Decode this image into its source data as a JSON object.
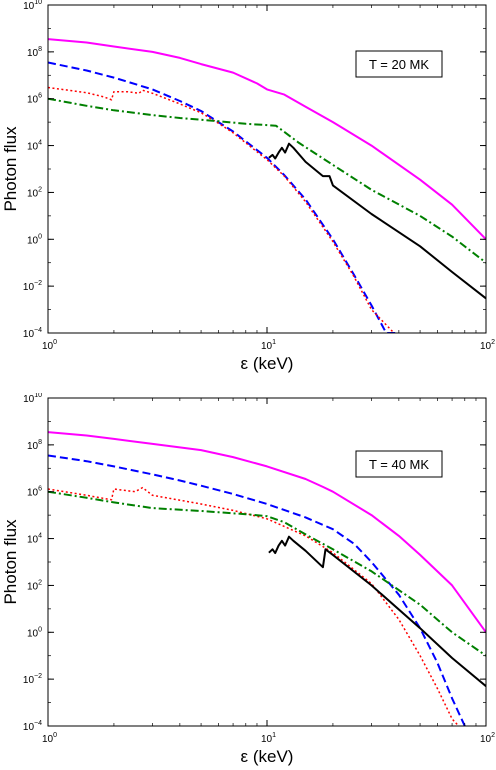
{
  "chart_data": [
    {
      "type": "line",
      "xlabel": "ε (keV)",
      "ylabel": "Photon flux",
      "xscale": "log",
      "yscale": "log",
      "xlim": [
        1,
        100
      ],
      "ylim": [
        0.0001,
        10000000000
      ],
      "xticks": [
        {
          "base": "10",
          "exp": "0",
          "value": 1
        },
        {
          "base": "10",
          "exp": "1",
          "value": 10
        },
        {
          "base": "10",
          "exp": "2",
          "value": 100
        }
      ],
      "yticks": [
        {
          "base": "10",
          "exp": "−4",
          "value": 0.0001
        },
        {
          "base": "10",
          "exp": "−2",
          "value": 0.01
        },
        {
          "base": "10",
          "exp": "0",
          "value": 1
        },
        {
          "base": "10",
          "exp": "2",
          "value": 100
        },
        {
          "base": "10",
          "exp": "4",
          "value": 10000
        },
        {
          "base": "10",
          "exp": "6",
          "value": 1000000
        },
        {
          "base": "10",
          "exp": "8",
          "value": 100000000
        },
        {
          "base": "10",
          "exp": "10",
          "value": 10000000000
        }
      ],
      "annotation": "T = 20 MK",
      "legend_position": "top-right",
      "grid": false,
      "series": [
        {
          "color": "#ff00ff",
          "dash": "solid",
          "points": [
            [
              1,
              350000000.0
            ],
            [
              1.5,
              250000000.0
            ],
            [
              2,
              170000000.0
            ],
            [
              3,
              100000000.0
            ],
            [
              4,
              55000000.0
            ],
            [
              5,
              30000000.0
            ],
            [
              7,
              13000000.0
            ],
            [
              9,
              4500000.0
            ],
            [
              10,
              2500000.0
            ],
            [
              12,
              1500000.0
            ],
            [
              15,
              450000.0
            ],
            [
              20,
              100000.0
            ],
            [
              30,
              10000.0
            ],
            [
              50,
              350.0
            ],
            [
              70,
              30.0
            ],
            [
              100,
              1.0
            ]
          ]
        },
        {
          "color": "#0000ff",
          "dash": "dashed",
          "points": [
            [
              1,
              35000000.0
            ],
            [
              1.5,
              16000000.0
            ],
            [
              2,
              8000000.0
            ],
            [
              3,
              2500000.0
            ],
            [
              4,
              800000.0
            ],
            [
              5,
              300000.0
            ],
            [
              6,
              100000.0
            ],
            [
              7,
              40000.0
            ],
            [
              8,
              15000.0
            ],
            [
              10,
              3000.0
            ],
            [
              12,
              550.0
            ],
            [
              15,
              50.0
            ],
            [
              20,
              1.0
            ],
            [
              25,
              0.03
            ],
            [
              30,
              0.0015
            ],
            [
              35,
              0.0001
            ],
            [
              40,
              0.0001
            ]
          ]
        },
        {
          "color": "#ff0000",
          "dash": "dotted",
          "points": [
            [
              1,
              3000000.0
            ],
            [
              1.5,
              1800000.0
            ],
            [
              1.8,
              1200000.0
            ],
            [
              1.95,
              900000.0
            ],
            [
              2,
              2000000.0
            ],
            [
              2.3,
              2000000.0
            ],
            [
              2.6,
              1700000.0
            ],
            [
              2.7,
              2300000.0
            ],
            [
              3,
              1700000.0
            ],
            [
              4,
              600000.0
            ],
            [
              5,
              250000.0
            ],
            [
              6,
              90000.0
            ],
            [
              7,
              35000.0
            ],
            [
              8,
              13000.0
            ],
            [
              10,
              2500.0
            ],
            [
              12,
              500.0
            ],
            [
              15,
              40.0
            ],
            [
              20,
              0.8
            ],
            [
              25,
              0.025
            ],
            [
              30,
              0.001
            ],
            [
              38,
              0.0001
            ]
          ]
        },
        {
          "color": "#008000",
          "dash": "dash-dot",
          "points": [
            [
              1,
              1000000.0
            ],
            [
              1.5,
              500000.0
            ],
            [
              2,
              320000.0
            ],
            [
              3,
              200000.0
            ],
            [
              4,
              150000.0
            ],
            [
              6,
              110000.0
            ],
            [
              8,
              85000.0
            ],
            [
              10,
              75000.0
            ],
            [
              11,
              70000.0
            ],
            [
              14,
              13000.0
            ],
            [
              20,
              1500.0
            ],
            [
              30,
              130.0
            ],
            [
              50,
              10.0
            ],
            [
              70,
              1.3
            ],
            [
              100,
              0.1
            ]
          ]
        },
        {
          "color": "#000000",
          "dash": "solid",
          "points": [
            [
              10.2,
              3000.0
            ],
            [
              10.6,
              4000.0
            ],
            [
              10.9,
              2800.0
            ],
            [
              11.3,
              5000.0
            ],
            [
              11.7,
              8000.0
            ],
            [
              12.1,
              5000.0
            ],
            [
              12.6,
              12000.0
            ],
            [
              13.2,
              8000.0
            ],
            [
              15,
              2000.0
            ],
            [
              18,
              500.0
            ],
            [
              19.3,
              500.0
            ],
            [
              20,
              200.0
            ],
            [
              30,
              12.0
            ],
            [
              50,
              0.5
            ],
            [
              70,
              0.04
            ],
            [
              100,
              0.003
            ]
          ]
        }
      ]
    },
    {
      "type": "line",
      "xlabel": "ε (keV)",
      "ylabel": "Photon flux",
      "xscale": "log",
      "yscale": "log",
      "xlim": [
        1,
        100
      ],
      "ylim": [
        0.0001,
        10000000000
      ],
      "xticks": [
        {
          "base": "10",
          "exp": "0",
          "value": 1
        },
        {
          "base": "10",
          "exp": "1",
          "value": 10
        },
        {
          "base": "10",
          "exp": "2",
          "value": 100
        }
      ],
      "yticks": [
        {
          "base": "10",
          "exp": "−4",
          "value": 0.0001
        },
        {
          "base": "10",
          "exp": "−2",
          "value": 0.01
        },
        {
          "base": "10",
          "exp": "0",
          "value": 1
        },
        {
          "base": "10",
          "exp": "2",
          "value": 100
        },
        {
          "base": "10",
          "exp": "4",
          "value": 10000
        },
        {
          "base": "10",
          "exp": "6",
          "value": 1000000
        },
        {
          "base": "10",
          "exp": "8",
          "value": 100000000
        },
        {
          "base": "10",
          "exp": "10",
          "value": 10000000000
        }
      ],
      "annotation": "T = 40 MK",
      "legend_position": "top-right",
      "grid": false,
      "series": [
        {
          "color": "#ff00ff",
          "dash": "solid",
          "points": [
            [
              1,
              350000000.0
            ],
            [
              1.5,
              250000000.0
            ],
            [
              2,
              180000000.0
            ],
            [
              3,
              110000000.0
            ],
            [
              5,
              60000000.0
            ],
            [
              7,
              30000000.0
            ],
            [
              10,
              12000000.0
            ],
            [
              15,
              3500000.0
            ],
            [
              18,
              1600000.0
            ],
            [
              20,
              1000000.0
            ],
            [
              30,
              100000.0
            ],
            [
              40,
              13000.0
            ],
            [
              50,
              2000.0
            ],
            [
              70,
              100.0
            ],
            [
              100,
              1.0
            ]
          ]
        },
        {
          "color": "#0000ff",
          "dash": "dashed",
          "points": [
            [
              1,
              35000000.0
            ],
            [
              1.5,
              20000000.0
            ],
            [
              2,
              12000000.0
            ],
            [
              3,
              5500000.0
            ],
            [
              4,
              3000000.0
            ],
            [
              5,
              1800000.0
            ],
            [
              7,
              800000.0
            ],
            [
              10,
              300000.0
            ],
            [
              15,
              80000.0
            ],
            [
              20,
              25000.0
            ],
            [
              25,
              6000.0
            ],
            [
              30,
              1000.0
            ],
            [
              40,
              40.0
            ],
            [
              50,
              1.5
            ],
            [
              60,
              0.05
            ],
            [
              70,
              0.0015
            ],
            [
              80,
              0.0001
            ]
          ]
        },
        {
          "color": "#ff0000",
          "dash": "dotted",
          "points": [
            [
              1,
              1300000.0
            ],
            [
              1.5,
              700000.0
            ],
            [
              1.95,
              450000.0
            ],
            [
              2,
              1300000.0
            ],
            [
              2.5,
              1000000.0
            ],
            [
              2.7,
              1500000.0
            ],
            [
              3,
              700000.0
            ],
            [
              5,
              300000.0
            ],
            [
              7,
              160000.0
            ],
            [
              10,
              70000.0
            ],
            [
              15,
              13000.0
            ],
            [
              20,
              2500.0
            ],
            [
              30,
              120.0
            ],
            [
              40,
              3.5
            ],
            [
              50,
              0.1
            ],
            [
              60,
              0.004
            ],
            [
              70,
              0.0002
            ],
            [
              75,
              0.0001
            ]
          ]
        },
        {
          "color": "#008000",
          "dash": "dash-dot",
          "points": [
            [
              1,
              1000000.0
            ],
            [
              1.5,
              550000.0
            ],
            [
              2,
              350000.0
            ],
            [
              3,
              200000.0
            ],
            [
              5,
              150000.0
            ],
            [
              8,
              110000.0
            ],
            [
              10,
              90000.0
            ],
            [
              12,
              50000.0
            ],
            [
              15,
              15000.0
            ],
            [
              20,
              3500.0
            ],
            [
              30,
              400.0
            ],
            [
              50,
              15.0
            ],
            [
              70,
              1.0
            ],
            [
              100,
              0.1
            ]
          ]
        },
        {
          "color": "#000000",
          "dash": "solid",
          "points": [
            [
              10.2,
              2500.0
            ],
            [
              10.6,
              3500.0
            ],
            [
              10.9,
              2400.0
            ],
            [
              11.3,
              5000.0
            ],
            [
              11.7,
              8000.0
            ],
            [
              12.1,
              5000.0
            ],
            [
              12.6,
              12000.0
            ],
            [
              13.2,
              8000.0
            ],
            [
              15,
              3000.0
            ],
            [
              18,
              600.0
            ],
            [
              18.5,
              3500.0
            ],
            [
              20,
              2000.0
            ],
            [
              30,
              100.0
            ],
            [
              50,
              1.5
            ],
            [
              70,
              0.08
            ],
            [
              100,
              0.005
            ]
          ]
        }
      ]
    }
  ]
}
